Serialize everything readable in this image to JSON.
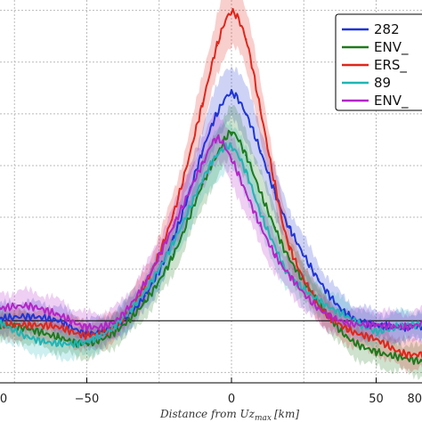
{
  "chart_data": {
    "type": "line",
    "title": "",
    "xlabel": "Distance from Uz",
    "xlabel_sub": "max",
    "xlabel_unit": "[km]",
    "ylabel": "",
    "xlim": [
      -80,
      80
    ],
    "ylim": [
      -0.3,
      1.55
    ],
    "xticks": [
      -50,
      0,
      50
    ],
    "xtick_labels": [
      "−50",
      "0",
      "50"
    ],
    "edge_tick_labels": [
      "0",
      "80"
    ],
    "grid": true,
    "legend_position": "top-right",
    "baseline": 0,
    "series": [
      {
        "name": "282",
        "color": "#1f35d6",
        "x": [
          -80,
          -70,
          -60,
          -50,
          -40,
          -30,
          -20,
          -10,
          -5,
          0,
          5,
          10,
          15,
          20,
          30,
          40,
          50,
          60,
          70,
          80
        ],
        "y": [
          0.01,
          0.02,
          0.0,
          -0.06,
          -0.02,
          0.12,
          0.4,
          0.82,
          1.0,
          1.1,
          1.0,
          0.82,
          0.62,
          0.45,
          0.2,
          0.03,
          -0.02,
          -0.03,
          -0.02,
          -0.01
        ]
      },
      {
        "name": "ENV_",
        "color": "#1e7a1e",
        "x": [
          -80,
          -70,
          -60,
          -50,
          -40,
          -30,
          -20,
          -10,
          -5,
          0,
          5,
          10,
          15,
          20,
          30,
          40,
          50,
          60,
          70,
          80
        ],
        "y": [
          -0.02,
          -0.04,
          -0.08,
          -0.11,
          -0.05,
          0.09,
          0.32,
          0.66,
          0.8,
          0.91,
          0.8,
          0.62,
          0.45,
          0.3,
          0.09,
          -0.08,
          -0.15,
          -0.18,
          -0.2,
          -0.14
        ]
      },
      {
        "name": "ERS_",
        "color": "#e0261b",
        "x": [
          -80,
          -70,
          -60,
          -50,
          -40,
          -30,
          -20,
          -10,
          -5,
          0,
          5,
          10,
          15,
          20,
          30,
          40,
          50,
          60,
          70,
          80
        ],
        "y": [
          -0.02,
          -0.02,
          -0.03,
          -0.07,
          -0.02,
          0.17,
          0.52,
          1.05,
          1.33,
          1.49,
          1.36,
          1.02,
          0.66,
          0.36,
          0.08,
          -0.04,
          -0.09,
          -0.16,
          -0.15,
          -0.1
        ]
      },
      {
        "name": "89",
        "color": "#1fb5b5",
        "x": [
          -80,
          -70,
          -60,
          -50,
          -40,
          -30,
          -20,
          -10,
          -5,
          0,
          5,
          10,
          15,
          20,
          30,
          40,
          50,
          60,
          70,
          80
        ],
        "y": [
          -0.01,
          -0.08,
          -0.11,
          -0.1,
          -0.02,
          0.14,
          0.38,
          0.68,
          0.8,
          0.84,
          0.72,
          0.52,
          0.36,
          0.22,
          0.1,
          0.02,
          -0.05,
          -0.02,
          -0.02,
          0.0
        ]
      },
      {
        "name": "ENV_",
        "color": "#b524c8",
        "x": [
          -80,
          -70,
          -60,
          -50,
          -40,
          -30,
          -20,
          -10,
          -5,
          0,
          5,
          10,
          15,
          20,
          30,
          40,
          50,
          60,
          70,
          80
        ],
        "y": [
          0.06,
          0.07,
          0.03,
          -0.03,
          0.0,
          0.18,
          0.46,
          0.76,
          0.88,
          0.78,
          0.62,
          0.46,
          0.32,
          0.22,
          0.06,
          -0.01,
          -0.02,
          -0.03,
          0.0,
          0.02
        ]
      }
    ]
  }
}
